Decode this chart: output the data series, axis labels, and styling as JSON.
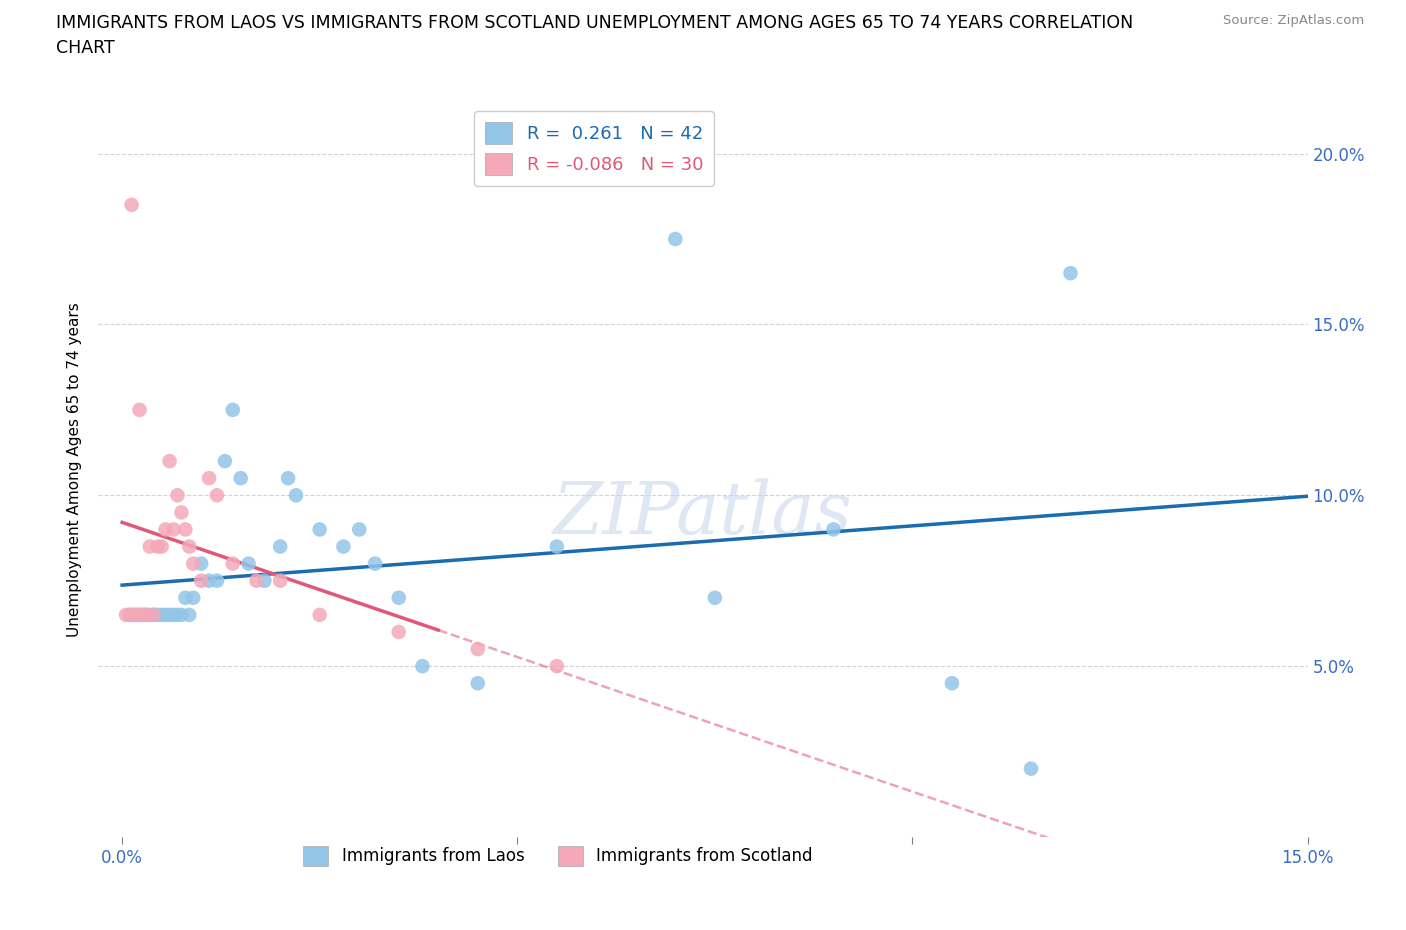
{
  "title_line1": "IMMIGRANTS FROM LAOS VS IMMIGRANTS FROM SCOTLAND UNEMPLOYMENT AMONG AGES 65 TO 74 YEARS CORRELATION",
  "title_line2": "CHART",
  "source": "Source: ZipAtlas.com",
  "ylabel": "Unemployment Among Ages 65 to 74 years",
  "xlim": [
    0.0,
    15.0
  ],
  "ylim": [
    0.0,
    21.5
  ],
  "yticks": [
    5.0,
    10.0,
    15.0,
    20.0
  ],
  "xticks": [
    0.0,
    5.0,
    10.0,
    15.0
  ],
  "xtick_labels": [
    "0.0%",
    "",
    "",
    "15.0%"
  ],
  "laos_color": "#92C5E8",
  "scotland_color": "#F4A8B8",
  "laos_line_color": "#1B6BB0",
  "scotland_line_color": "#E05878",
  "laos_R": 0.261,
  "laos_N": 42,
  "scotland_R": -0.086,
  "scotland_N": 30,
  "laos_x": [
    0.1,
    0.15,
    0.2,
    0.25,
    0.3,
    0.35,
    0.4,
    0.45,
    0.5,
    0.55,
    0.6,
    0.65,
    0.7,
    0.75,
    0.8,
    0.85,
    0.9,
    1.0,
    1.1,
    1.2,
    1.3,
    1.5,
    1.6,
    1.8,
    2.0,
    2.1,
    2.2,
    2.5,
    2.8,
    3.0,
    3.2,
    3.5,
    3.8,
    4.5,
    5.5,
    7.0,
    7.5,
    9.0,
    10.5,
    12.0,
    11.5,
    1.4
  ],
  "laos_y": [
    6.5,
    6.5,
    6.5,
    6.5,
    6.5,
    6.5,
    6.5,
    6.5,
    6.5,
    6.5,
    6.5,
    6.5,
    6.5,
    6.5,
    7.0,
    6.5,
    7.0,
    8.0,
    7.5,
    7.5,
    11.0,
    10.5,
    8.0,
    7.5,
    8.5,
    10.5,
    10.0,
    9.0,
    8.5,
    9.0,
    8.0,
    7.0,
    5.0,
    4.5,
    8.5,
    17.5,
    7.0,
    9.0,
    4.5,
    16.5,
    2.0,
    12.5
  ],
  "scotland_x": [
    0.05,
    0.1,
    0.15,
    0.2,
    0.25,
    0.3,
    0.35,
    0.4,
    0.45,
    0.5,
    0.55,
    0.6,
    0.65,
    0.7,
    0.75,
    0.8,
    0.85,
    0.9,
    1.0,
    1.1,
    1.2,
    1.4,
    1.7,
    2.0,
    2.5,
    3.5,
    4.5,
    5.5,
    0.12,
    0.22
  ],
  "scotland_y": [
    6.5,
    6.5,
    6.5,
    6.5,
    6.5,
    6.5,
    8.5,
    6.5,
    8.5,
    8.5,
    9.0,
    11.0,
    9.0,
    10.0,
    9.5,
    9.0,
    8.5,
    8.0,
    7.5,
    10.5,
    10.0,
    8.0,
    7.5,
    7.5,
    6.5,
    6.0,
    5.5,
    5.0,
    18.5,
    12.5
  ],
  "laos_legend_label": "Immigrants from Laos",
  "scotland_legend_label": "Immigrants from Scotland"
}
